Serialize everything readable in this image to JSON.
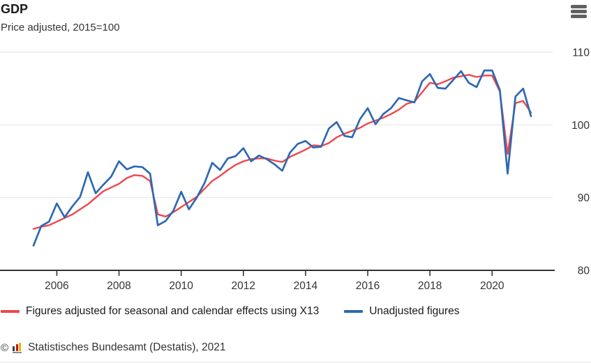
{
  "header": {
    "title": "GDP",
    "subtitle": "Price adjusted, 2015=100",
    "menu_icon": "hamburger-menu-icon"
  },
  "chart_data": {
    "type": "line",
    "title": "GDP",
    "subtitle": "Price adjusted, 2015=100",
    "x_unit": "quarterly",
    "x_start": "2005-Q1",
    "x_end": "2021-Q1",
    "x_axis": {
      "tick_labels": [
        "2006",
        "2008",
        "2010",
        "2012",
        "2014",
        "2016",
        "2018",
        "2020"
      ],
      "tick_years": [
        2006,
        2008,
        2010,
        2012,
        2014,
        2016,
        2018,
        2020
      ],
      "start_year": 2005.125,
      "step_years": 0.25
    },
    "y_axis": {
      "tick_labels": [
        "80",
        "90",
        "100",
        "110"
      ],
      "ticks": [
        80,
        90,
        100,
        110
      ],
      "side": "right"
    },
    "ylim": [
      79,
      111.5
    ],
    "grid": "horizontal",
    "legend_position": "bottom",
    "axis_color": "#333333",
    "grid_color": "#ebebeb",
    "series": [
      {
        "name": "Figures adjusted for seasonal and calendar effects using X13",
        "color": "#ee474d",
        "values": [
          85.7,
          86.0,
          86.2,
          86.7,
          87.2,
          87.7,
          88.4,
          89.1,
          90.0,
          90.9,
          91.4,
          91.9,
          92.7,
          93.1,
          93.0,
          92.3,
          87.7,
          87.4,
          88.0,
          88.7,
          89.4,
          90.1,
          91.2,
          92.3,
          93.0,
          93.8,
          94.5,
          95.0,
          95.3,
          95.4,
          95.4,
          95.1,
          94.9,
          95.6,
          96.1,
          96.6,
          97.2,
          97.1,
          97.5,
          98.3,
          98.8,
          99.2,
          99.6,
          100.2,
          100.6,
          101.0,
          101.5,
          102.1,
          102.9,
          103.2,
          104.5,
          105.8,
          105.6,
          106.0,
          106.5,
          106.7,
          106.9,
          106.6,
          106.8,
          106.8,
          104.6,
          96.0,
          103.0,
          103.3,
          101.7
        ]
      },
      {
        "name": "Unadjusted figures",
        "color": "#2f69b0",
        "values": [
          83.4,
          86.1,
          86.7,
          89.2,
          87.3,
          88.8,
          90.1,
          93.5,
          90.6,
          91.8,
          92.9,
          95.0,
          93.9,
          94.3,
          94.2,
          93.3,
          86.2,
          86.8,
          88.2,
          90.8,
          88.4,
          90.0,
          92.0,
          94.8,
          93.8,
          95.4,
          95.7,
          96.8,
          95.0,
          95.8,
          95.3,
          94.6,
          93.7,
          96.2,
          97.4,
          97.8,
          96.9,
          97.0,
          99.5,
          100.4,
          98.5,
          98.3,
          100.8,
          102.3,
          100.1,
          101.5,
          102.3,
          103.7,
          103.4,
          103.1,
          106.0,
          107.0,
          105.1,
          105.0,
          106.2,
          107.4,
          105.8,
          105.2,
          107.5,
          107.5,
          104.8,
          93.3,
          103.9,
          105.0,
          101.2
        ]
      }
    ]
  },
  "legend": {
    "items": [
      {
        "label": "Figures adjusted for seasonal and calendar effects using X13",
        "color": "#ee474d"
      },
      {
        "label": "Unadjusted figures",
        "color": "#2f69b0"
      }
    ]
  },
  "footer": {
    "copyright_symbol": "©",
    "logo_icon": "destatis-logo-icon",
    "source": "Statistisches Bundesamt (Destatis), 2021"
  }
}
